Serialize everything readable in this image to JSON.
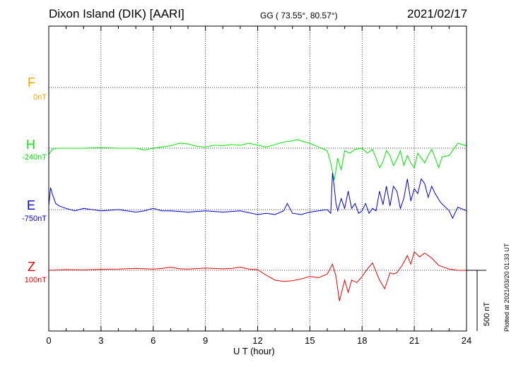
{
  "header": {
    "station": "Dixon Island (DIK)  [AARI]",
    "coords": "GG ( 73.55°,  80.57°)",
    "date": "2021/02/17"
  },
  "components": [
    {
      "label": "F",
      "baseline": "0nT",
      "color": "#ffa500"
    },
    {
      "label": "H",
      "baseline": "-240nT",
      "color": "#00ee00"
    },
    {
      "label": "E",
      "baseline": "-750nT",
      "color": "#0000dd"
    },
    {
      "label": "Z",
      "baseline": "100nT",
      "color": "#ee0000"
    }
  ],
  "scale_label": "500 nT",
  "plotted_note": "Plotted at 2021/03/20 01:33 UT",
  "chart_data": {
    "type": "line",
    "xlabel": "U T (hour)",
    "xlim": [
      0,
      24
    ],
    "xticks": [
      "0",
      "3",
      "6",
      "9",
      "12",
      "15",
      "18",
      "21",
      "24"
    ],
    "grid": true,
    "scale_nT": 500,
    "series": [
      {
        "name": "H",
        "color": "#00ee00",
        "x": [
          0,
          0.2,
          0.5,
          1,
          2,
          3,
          4,
          5,
          5.5,
          6,
          6.5,
          7,
          7.5,
          8,
          8.5,
          9,
          9.5,
          10,
          10.5,
          11,
          11.5,
          12,
          12.5,
          13,
          13.5,
          14,
          14.3,
          14.6,
          15,
          15.5,
          16,
          16.2,
          16.4,
          16.5,
          16.6,
          16.8,
          17,
          17.3,
          17.6,
          18,
          18.3,
          18.6,
          18.8,
          19,
          19.2,
          19.4,
          19.6,
          19.8,
          20,
          20.2,
          20.4,
          20.6,
          20.8,
          21,
          21.2,
          21.4,
          21.6,
          21.8,
          22,
          22.2,
          22.4,
          22.6,
          23,
          23.5,
          24
        ],
        "y": [
          -290,
          -250,
          -240,
          -240,
          -240,
          -235,
          -240,
          -240,
          -255,
          -240,
          -230,
          -220,
          -200,
          -205,
          -225,
          -230,
          -215,
          -220,
          -210,
          -215,
          -200,
          -215,
          -230,
          -210,
          -190,
          -180,
          -170,
          -185,
          -200,
          -230,
          -260,
          -360,
          -500,
          -420,
          -320,
          -420,
          -260,
          -280,
          -250,
          -240,
          -280,
          -250,
          -320,
          -400,
          -350,
          -260,
          -300,
          -380,
          -330,
          -260,
          -380,
          -300,
          -360,
          -400,
          -280,
          -320,
          -360,
          -300,
          -250,
          -320,
          -400,
          -310,
          -300,
          -200,
          -220
        ]
      },
      {
        "name": "E",
        "color": "#0000dd",
        "x": [
          0,
          0.1,
          0.2,
          0.4,
          0.6,
          1,
          1.5,
          2,
          3,
          4,
          5,
          5.5,
          6,
          6.5,
          7,
          8,
          9,
          10,
          11,
          12,
          12.5,
          13,
          13.5,
          13.7,
          14,
          14.5,
          15,
          15.5,
          16,
          16.2,
          16.3,
          16.4,
          16.5,
          16.6,
          16.8,
          17,
          17.2,
          17.4,
          17.6,
          17.8,
          18,
          18.2,
          18.4,
          18.6,
          18.8,
          19,
          19.2,
          19.4,
          19.6,
          19.8,
          20,
          20.2,
          20.4,
          20.6,
          20.8,
          21,
          21.2,
          21.4,
          21.6,
          21.8,
          22,
          22.2,
          22.5,
          23,
          23.2,
          23.5,
          24
        ],
        "y": [
          -720,
          -570,
          -620,
          -700,
          -720,
          -740,
          -760,
          -740,
          -760,
          -750,
          -770,
          -760,
          -740,
          -760,
          -760,
          -770,
          -760,
          -770,
          -760,
          -790,
          -780,
          -790,
          -760,
          -700,
          -780,
          -790,
          -770,
          -760,
          -750,
          -780,
          -450,
          -560,
          -700,
          -760,
          -660,
          -740,
          -600,
          -740,
          -700,
          -780,
          -760,
          -700,
          -780,
          -740,
          -760,
          -600,
          -710,
          -560,
          -720,
          -560,
          -600,
          -740,
          -660,
          -500,
          -680,
          -580,
          -620,
          -500,
          -540,
          -650,
          -560,
          -620,
          -690,
          -760,
          -820,
          -730,
          -760
        ]
      },
      {
        "name": "Z",
        "color": "#ee0000",
        "x": [
          0,
          1,
          2,
          3,
          4,
          5,
          6,
          6.5,
          7,
          7.5,
          8,
          9,
          10,
          10.5,
          11,
          11.5,
          12,
          12.5,
          13,
          13.5,
          14,
          14.5,
          15,
          15.5,
          16,
          16.3,
          16.5,
          16.7,
          17,
          17.2,
          17.4,
          17.7,
          18,
          18.3,
          18.6,
          19,
          19.3,
          19.6,
          19.8,
          20,
          20.3,
          20.6,
          20.8,
          21,
          21.3,
          21.6,
          22,
          22.4,
          23,
          23.5,
          24
        ],
        "y": [
          100,
          105,
          103,
          108,
          110,
          115,
          110,
          115,
          125,
          112,
          110,
          118,
          112,
          115,
          125,
          110,
          105,
          60,
          20,
          10,
          15,
          30,
          50,
          40,
          70,
          150,
          50,
          -150,
          20,
          -80,
          20,
          0,
          50,
          110,
          160,
          20,
          -50,
          80,
          70,
          80,
          140,
          220,
          150,
          250,
          210,
          240,
          200,
          140,
          110,
          100,
          100
        ]
      }
    ]
  }
}
